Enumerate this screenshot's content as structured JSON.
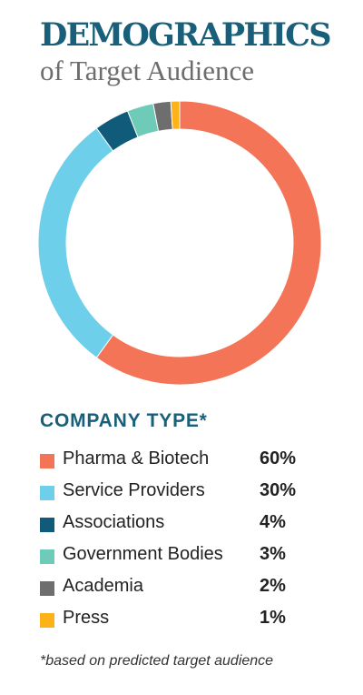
{
  "header": {
    "title": "DEMOGRAPHICS",
    "subtitle": "of Target Audience"
  },
  "chart_data": {
    "type": "pie",
    "variant": "donut",
    "title": "DEMOGRAPHICS",
    "subtitle": "of Target Audience",
    "legend_title": "COMPANY TYPE*",
    "legend_placement": "bottom",
    "categories": [
      "Pharma & Biotech",
      "Service Providers",
      "Associations",
      "Government Bodies",
      "Academia",
      "Press"
    ],
    "values": [
      60,
      30,
      4,
      3,
      2,
      1
    ],
    "value_labels": [
      "60%",
      "30%",
      "4%",
      "3%",
      "2%",
      "1%"
    ],
    "colors": [
      "#f47457",
      "#6ecfea",
      "#0f5b79",
      "#6dcbb7",
      "#6e6e6e",
      "#fbb319"
    ],
    "footnote": "*based on predicted target audience"
  }
}
